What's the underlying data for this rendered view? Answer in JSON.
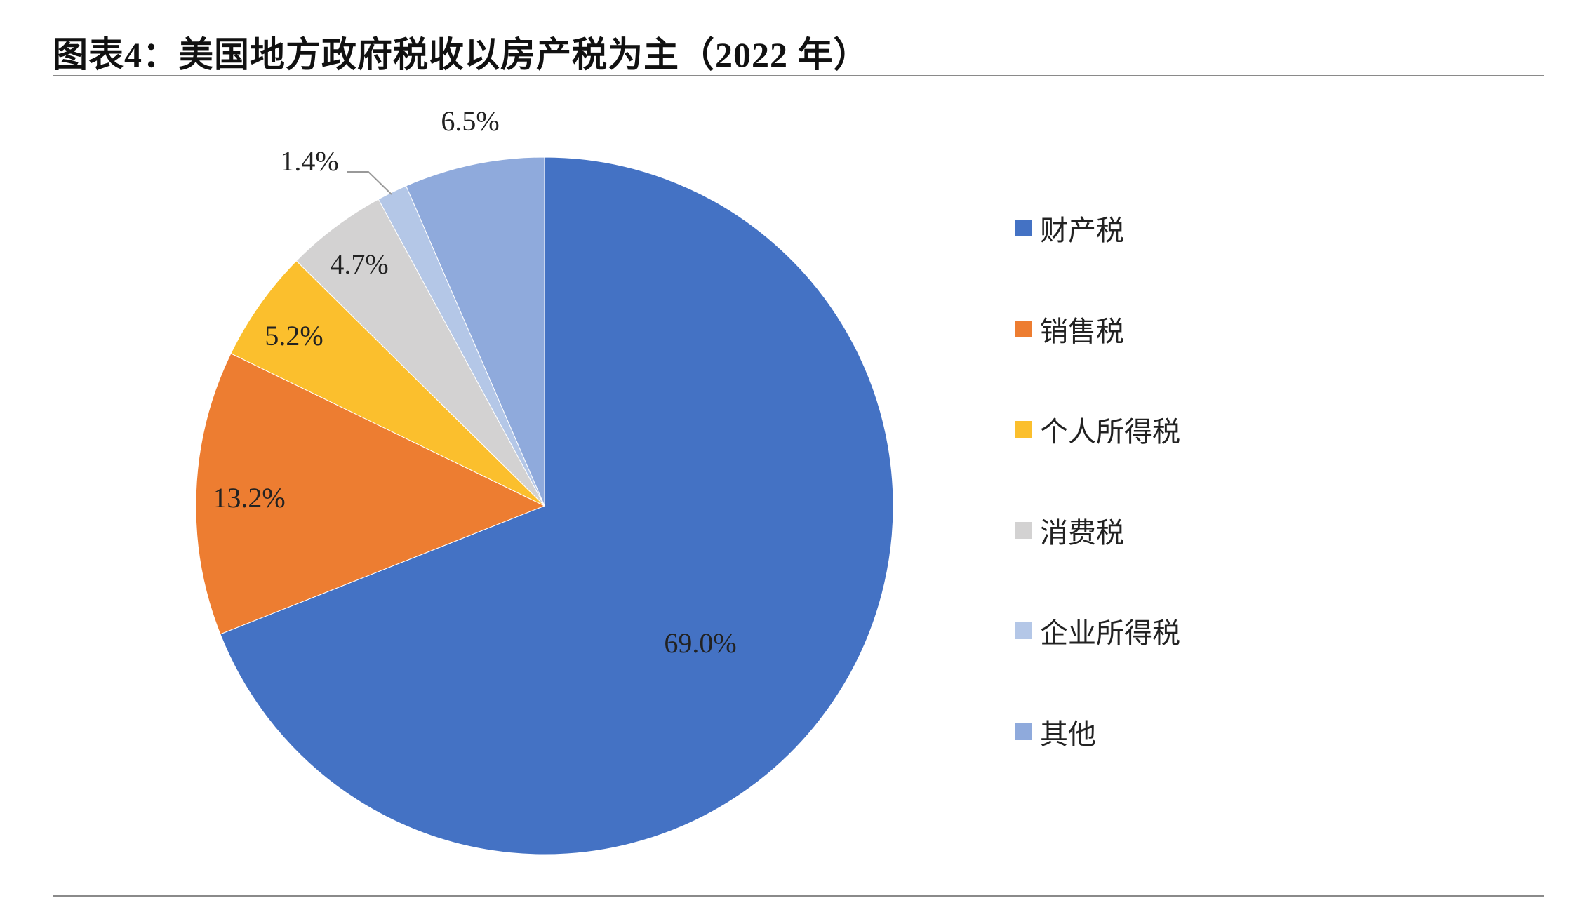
{
  "title": "图表4：美国地方政府税收以房产税为主（2022 年）",
  "chart_data": {
    "type": "pie",
    "title": "图表4：美国地方政府税收以房产税为主（2022 年）",
    "categories": [
      "财产税",
      "销售税",
      "个人所得税",
      "消费税",
      "企业所得税",
      "其他"
    ],
    "values": [
      69.0,
      13.2,
      5.2,
      4.7,
      1.4,
      6.5
    ],
    "data_labels": [
      "69.0%",
      "13.2%",
      "5.2%",
      "4.7%",
      "1.4%",
      "6.5%"
    ],
    "colors": [
      "#4472C4",
      "#ED7D31",
      "#FBBF2D",
      "#D3D2D2",
      "#B4C7E7",
      "#8FAADC"
    ],
    "start_angle": "12 o'clock",
    "direction": "clockwise",
    "legend_position": "right"
  }
}
